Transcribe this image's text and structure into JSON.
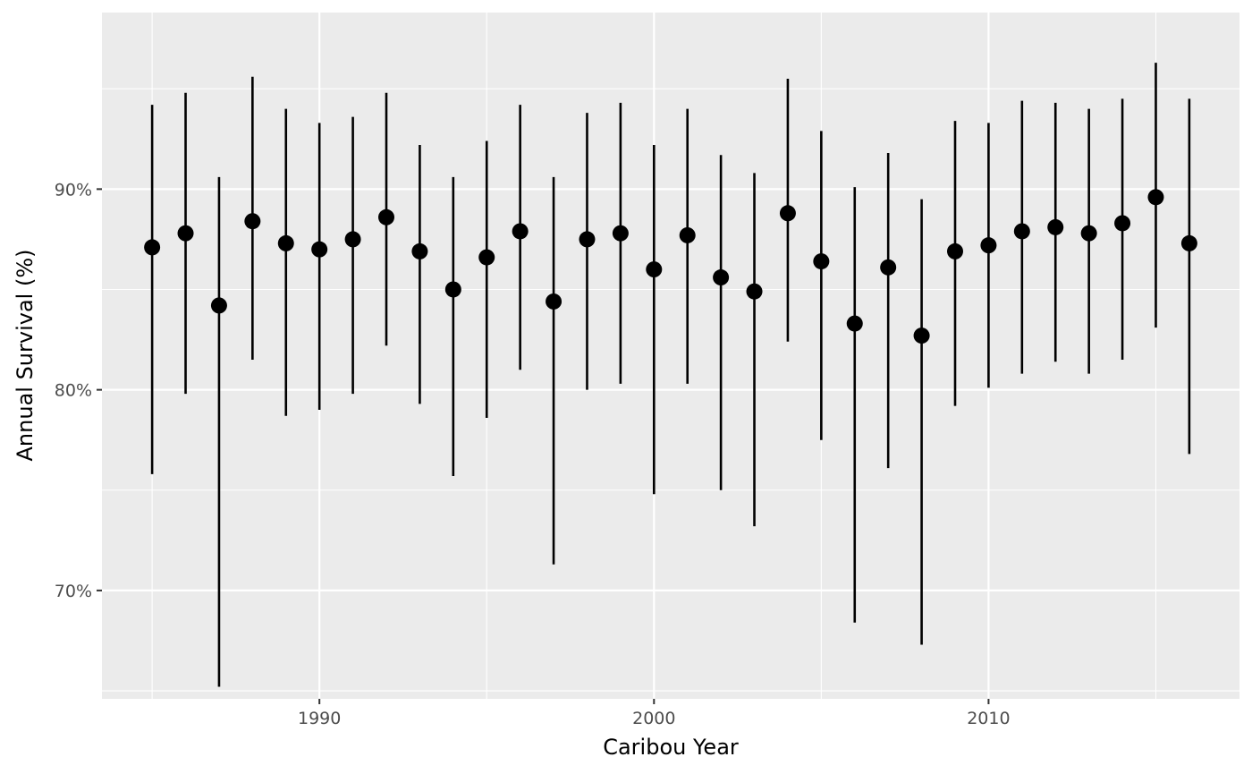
{
  "chart_data": {
    "type": "scatter",
    "subtype": "point-range",
    "xlabel": "Caribou Year",
    "ylabel": "Annual Survival (%)",
    "xlim": [
      1983.5,
      2017.5
    ],
    "ylim": [
      64.6,
      98.8
    ],
    "x_ticks": [
      1990,
      2000,
      2010
    ],
    "x_tick_labels": [
      "1990",
      "2000",
      "2010"
    ],
    "y_ticks": [
      70,
      80,
      90
    ],
    "y_tick_labels": [
      "70%",
      "80%",
      "90%"
    ],
    "grid": true,
    "legend": "none",
    "colors": {
      "panel": "#ebebeb",
      "grid": "#ffffff",
      "mark": "#000000"
    },
    "series": [
      {
        "x": [
          1985,
          1986,
          1987,
          1988,
          1989,
          1990,
          1991,
          1992,
          1993,
          1994,
          1995,
          1996,
          1997,
          1998,
          1999,
          2000,
          2001,
          2002,
          2003,
          2004,
          2005,
          2006,
          2007,
          2008,
          2009,
          2010,
          2011,
          2012,
          2013,
          2014,
          2015,
          2016
        ],
        "y": [
          87.1,
          87.8,
          84.2,
          88.4,
          87.3,
          87.0,
          87.5,
          88.6,
          86.9,
          85.0,
          86.6,
          87.9,
          84.4,
          87.5,
          87.8,
          86.0,
          87.7,
          85.6,
          84.9,
          88.8,
          86.4,
          83.3,
          86.1,
          82.7,
          86.9,
          87.2,
          87.9,
          88.1,
          87.8,
          88.3,
          89.6,
          87.3
        ],
        "lower": [
          75.8,
          79.8,
          65.2,
          81.5,
          78.7,
          79.0,
          79.8,
          82.2,
          79.3,
          75.7,
          78.6,
          81.0,
          71.3,
          80.0,
          80.3,
          74.8,
          80.3,
          75.0,
          73.2,
          82.4,
          77.5,
          68.4,
          76.1,
          67.3,
          79.2,
          80.1,
          80.8,
          81.4,
          80.8,
          81.5,
          83.1,
          76.8
        ],
        "upper": [
          94.2,
          94.8,
          90.6,
          95.6,
          94.0,
          93.3,
          93.6,
          94.8,
          92.2,
          90.6,
          92.4,
          94.2,
          90.6,
          93.8,
          94.3,
          92.2,
          94.0,
          91.7,
          90.8,
          95.5,
          92.9,
          90.1,
          91.8,
          89.5,
          93.4,
          93.3,
          94.4,
          94.3,
          94.0,
          94.5,
          96.3,
          94.5
        ]
      }
    ]
  }
}
